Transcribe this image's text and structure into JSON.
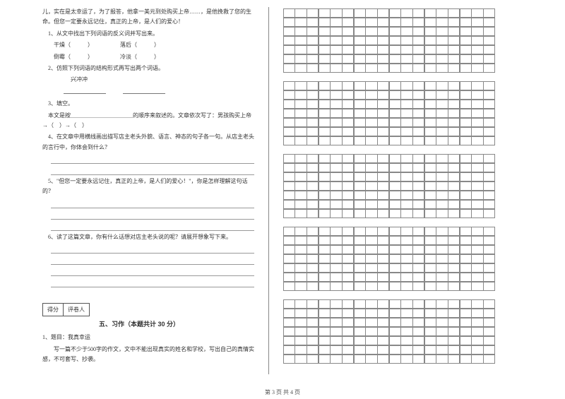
{
  "left": {
    "passage1": "儿，实在是太幸运了，为了报答，他拿一美元到处购买上帝……，是他挽救了您的生命。但您一定要永远记住，真正的上帝，是人们的爱心！",
    "q1_title": "1、从文中找出下列词语的反义词并写出来。",
    "q1_row1a": "干燥（　　　）",
    "q1_row1b": "落后（　　　）",
    "q1_row2a": "倒霉（　　　）",
    "q1_row2b": "冷淡（　　　）",
    "q2_title": "2、仿照下列词语的结构形式再写出两个词语。",
    "q2_word": "兴冲冲",
    "q3_title": "3、填空。",
    "q3_body": "本文是按＿＿＿＿＿＿＿＿＿＿＿的顺序来叙述的。文章依次写了：男孩购买上帝→（　）→（　）",
    "q4_title": "4、在文章中用横线画出描写店主老头外貌、语言、神态的句子各一句。从店主老头的言行中，你体会到什么？",
    "q5_title": "5、\"但您一定要永远记住，真正的上帝，是人们的爱心！\"，你是怎样理解这句话的？",
    "q6_title": "6、读了这篇文章，你有什么话想对店主老头说的呢？请展开想象写下来。",
    "score_label1": "得分",
    "score_label2": "评卷人",
    "section5": "五、习作（本题共计 30 分）",
    "essay_title": "1、题目：我真幸运",
    "essay_req1": "写一篇不少于500字的作文，文中不能出现真实的姓名和学校，写出自己的真情实感，不可套写、抄袭。"
  },
  "grids": {
    "rows_per_block": [
      7,
      7,
      7,
      7,
      7
    ],
    "cols": 18
  },
  "footer": "第 3 页  共 4 页",
  "colors": {
    "text": "#333333",
    "line": "#888888",
    "bg": "#ffffff"
  }
}
